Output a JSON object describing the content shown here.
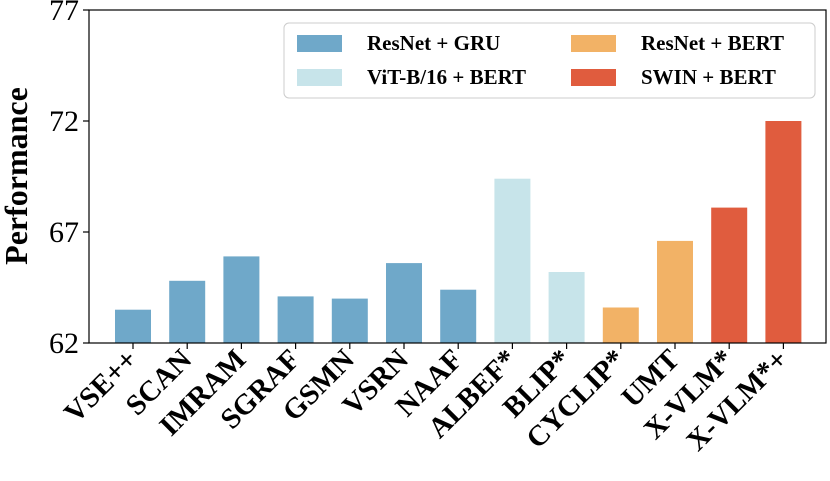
{
  "chart_data": {
    "type": "bar",
    "ylabel": "Performance",
    "xlabel": "",
    "ylim": [
      62,
      77
    ],
    "yticks": [
      62,
      67,
      72,
      77
    ],
    "grid": false,
    "legend_placement": "top-right",
    "categories": [
      "VSE++",
      "SCAN",
      "IMRAM",
      "SGRAF",
      "GSMN",
      "VSRN",
      "NAAF",
      "ALBEF*",
      "BLIP*",
      "CYCLIP*",
      "UMT",
      "X-VLM*",
      "X-VLM*+"
    ],
    "values": [
      63.5,
      64.8,
      65.9,
      64.1,
      64.0,
      65.6,
      64.4,
      69.4,
      65.2,
      63.6,
      66.6,
      68.1,
      72.0
    ],
    "series_index": [
      0,
      0,
      0,
      0,
      0,
      0,
      0,
      1,
      1,
      2,
      2,
      3,
      3
    ],
    "series": [
      {
        "name": "ResNet + GRU",
        "color": "#6fa8c9"
      },
      {
        "name": "ViT-B/16 + BERT",
        "color": "#c7e4ea"
      },
      {
        "name": "ResNet + BERT",
        "color": "#f2b266"
      },
      {
        "name": "SWIN + BERT",
        "color": "#e05c3e"
      }
    ]
  }
}
